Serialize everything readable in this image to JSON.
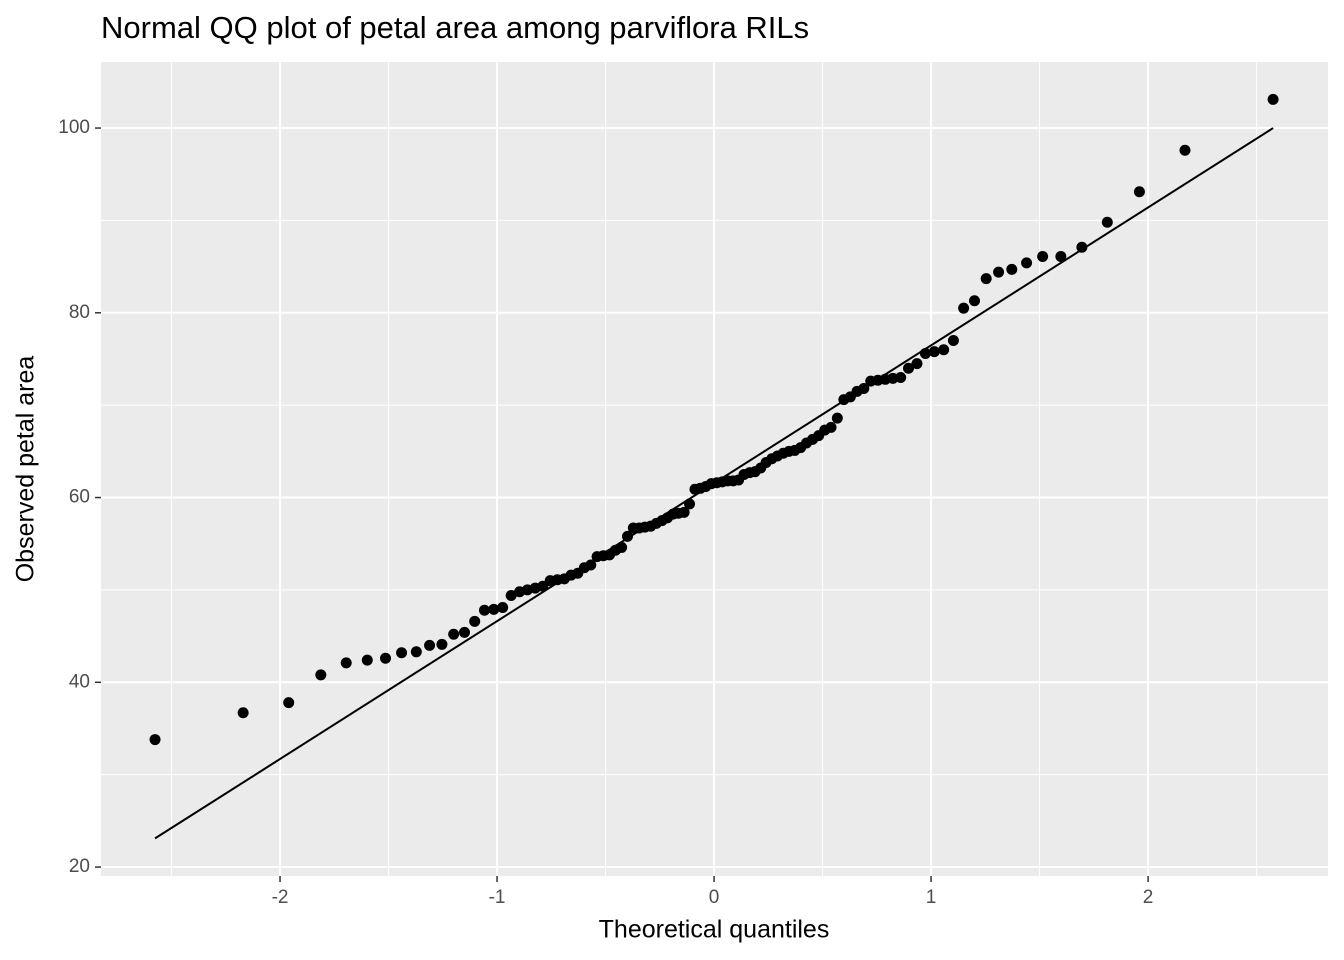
{
  "chart_data": {
    "type": "scatter",
    "title": "Normal QQ plot of petal area among parviflora RILs",
    "x_label": "Theoretical quantiles",
    "y_label": "Observed petal area",
    "x": [
      -2.576,
      -2.17,
      -1.96,
      -1.812,
      -1.695,
      -1.598,
      -1.514,
      -1.44,
      -1.372,
      -1.311,
      -1.254,
      -1.2,
      -1.15,
      -1.103,
      -1.058,
      -1.015,
      -0.974,
      -0.935,
      -0.896,
      -0.86,
      -0.824,
      -0.789,
      -0.755,
      -0.722,
      -0.69,
      -0.659,
      -0.628,
      -0.598,
      -0.568,
      -0.539,
      -0.51,
      -0.482,
      -0.454,
      -0.426,
      -0.399,
      -0.372,
      -0.345,
      -0.319,
      -0.292,
      -0.266,
      -0.24,
      -0.215,
      -0.189,
      -0.164,
      -0.138,
      -0.113,
      -0.088,
      -0.063,
      -0.038,
      -0.013,
      0.013,
      0.038,
      0.063,
      0.088,
      0.113,
      0.138,
      0.164,
      0.189,
      0.215,
      0.24,
      0.266,
      0.292,
      0.319,
      0.345,
      0.372,
      0.399,
      0.426,
      0.454,
      0.482,
      0.51,
      0.539,
      0.568,
      0.598,
      0.628,
      0.659,
      0.69,
      0.722,
      0.755,
      0.789,
      0.824,
      0.86,
      0.896,
      0.935,
      0.974,
      1.015,
      1.058,
      1.103,
      1.15,
      1.2,
      1.254,
      1.311,
      1.372,
      1.44,
      1.514,
      1.598,
      1.695,
      1.812,
      1.96,
      2.17,
      2.576
    ],
    "values": [
      33.8,
      36.7,
      37.8,
      40.8,
      42.1,
      42.4,
      42.6,
      43.2,
      43.3,
      44.0,
      44.1,
      45.2,
      45.4,
      46.6,
      47.8,
      47.9,
      48.1,
      49.4,
      49.8,
      50.0,
      50.2,
      50.4,
      51.0,
      51.1,
      51.2,
      51.6,
      51.8,
      52.4,
      52.7,
      53.6,
      53.7,
      53.8,
      54.3,
      54.6,
      55.8,
      56.7,
      56.7,
      56.8,
      56.9,
      57.2,
      57.5,
      57.8,
      58.2,
      58.3,
      58.4,
      59.3,
      60.9,
      61.0,
      61.2,
      61.5,
      61.6,
      61.7,
      61.8,
      61.8,
      61.9,
      62.5,
      62.7,
      62.8,
      63.2,
      63.8,
      64.2,
      64.5,
      64.8,
      65.0,
      65.1,
      65.4,
      65.9,
      66.3,
      66.7,
      67.3,
      67.6,
      68.6,
      70.6,
      70.9,
      71.5,
      71.8,
      72.6,
      72.7,
      72.8,
      72.9,
      73.0,
      74.0,
      74.5,
      75.6,
      75.8,
      76.0,
      77.0,
      80.5,
      81.3,
      83.7,
      84.4,
      84.7,
      85.4,
      86.1,
      86.1,
      87.1,
      89.8,
      93.1,
      97.6,
      103.1
    ],
    "color": "#000000",
    "reference_line": {
      "x": [
        -2.576,
        2.576
      ],
      "values": [
        23.1,
        100.0
      ],
      "color": "#000000"
    },
    "xlim": [
      -2.825,
      2.829
    ],
    "ylim": [
      19.03,
      107.15
    ],
    "xticks": [
      -2,
      -1,
      0,
      1,
      2
    ],
    "yticks": [
      20,
      40,
      60,
      80,
      100
    ],
    "grid": true,
    "panel_color": "#ebebeb"
  }
}
